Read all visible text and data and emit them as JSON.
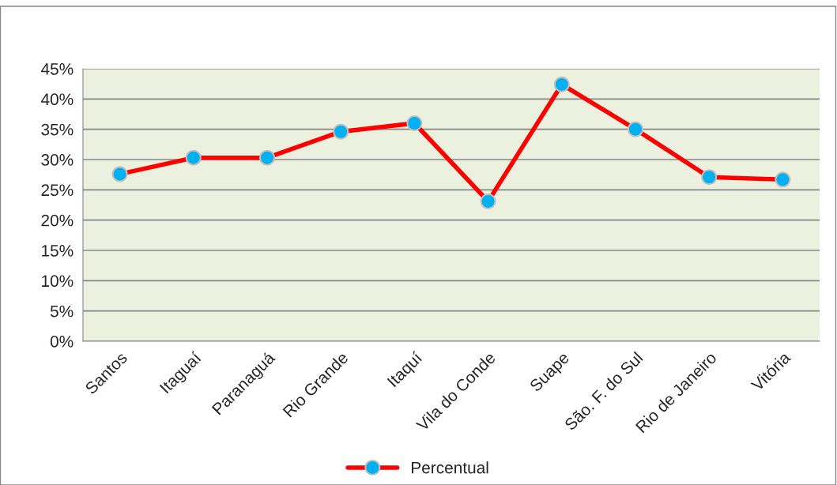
{
  "chart_data": {
    "type": "line",
    "categories": [
      "Santos",
      "Itaguaí",
      "Paranaguá",
      "Rio Grande",
      "Itaquí",
      "Vila do Conde",
      "Suape",
      "São. F. do Sul",
      "Rio de Janeiro",
      "Vitória"
    ],
    "series": [
      {
        "name": "Percentual",
        "color": "#ff0000",
        "values": [
          27.6,
          30.3,
          30.3,
          34.6,
          36.0,
          23.1,
          42.4,
          35.0,
          27.1,
          26.7
        ]
      }
    ],
    "ylim": [
      0,
      45
    ],
    "yticks": [
      {
        "value": 0,
        "label": "0%"
      },
      {
        "value": 5,
        "label": "5%"
      },
      {
        "value": 10,
        "label": "10%"
      },
      {
        "value": 15,
        "label": "15%"
      },
      {
        "value": 20,
        "label": "20%"
      },
      {
        "value": 25,
        "label": "25%"
      },
      {
        "value": 30,
        "label": "30%"
      },
      {
        "value": 35,
        "label": "35%"
      },
      {
        "value": 40,
        "label": "40%"
      },
      {
        "value": 45,
        "label": "45%"
      }
    ],
    "grid": "y",
    "legend": "bottom",
    "marker": "circle",
    "line_style": "solid"
  }
}
